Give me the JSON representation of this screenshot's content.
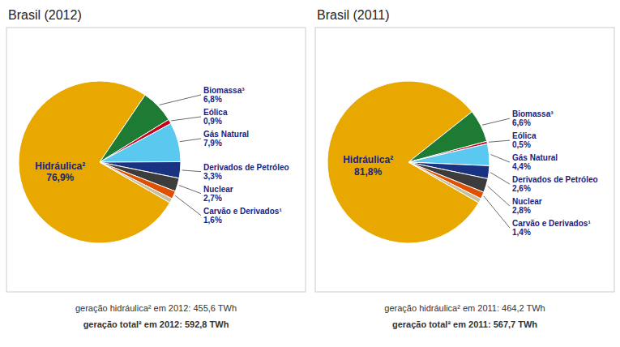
{
  "chart_data": [
    {
      "type": "pie",
      "title": "Brasil (2012)",
      "categories": [
        "Hidráulica²",
        "Biomassa³",
        "Eólica",
        "Gás Natural",
        "Derivados de Petróleo",
        "Nuclear",
        "Carvão e Derivados¹",
        null
      ],
      "values": [
        76.9,
        6.8,
        0.9,
        7.9,
        3.3,
        2.7,
        1.6,
        0.9
      ],
      "value_labels": [
        "76,9%",
        "6,8%",
        "0,9%",
        "7,9%",
        "3,3%",
        "2,7%",
        "1,6%",
        null
      ],
      "colors": [
        "#E8A800",
        "#1E7B34",
        "#C8001E",
        "#5BC8F0",
        "#1A3282",
        "#3C3C3C",
        "#E05000",
        "#C8C0A0"
      ],
      "data_labels": true,
      "annotations": [
        "geração hidráulica² em 2012: 455,6 TWh",
        "geração total² em 2012: 592,8 TWh"
      ]
    },
    {
      "type": "pie",
      "title": "Brasil (2011)",
      "categories": [
        "Hidráulica²",
        "Biomassa³",
        "Eólica",
        "Gás Natural",
        "Derivados de Petróleo",
        "Nuclear",
        "Carvão e Derivados¹",
        null
      ],
      "values": [
        81.8,
        6.6,
        0.5,
        4.4,
        2.6,
        2.8,
        1.4,
        0.9
      ],
      "value_labels": [
        "81,8%",
        "6,6%",
        "0,5%",
        "4,4%",
        "2,6%",
        "2,8%",
        "1,4%",
        null
      ],
      "colors": [
        "#E8A800",
        "#1E7B34",
        "#C8001E",
        "#5BC8F0",
        "#1A3282",
        "#3C3C3C",
        "#E05000",
        "#C8C0A0"
      ],
      "data_labels": true,
      "annotations": [
        "geração hidráulica² em 2011: 464,2 TWh",
        "geração total² em 2011: 567,7 TWh"
      ]
    }
  ]
}
